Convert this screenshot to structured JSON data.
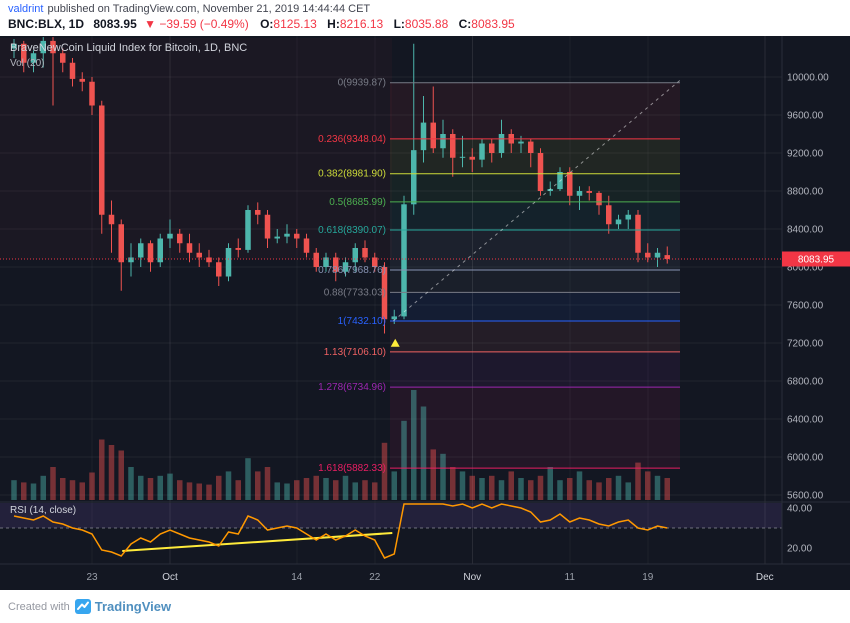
{
  "header": {
    "author": "valdrint",
    "published_text": "published on TradingView.com, November 21, 2019 14:44:44 CET",
    "symbol": "BNC:BLX, 1D",
    "last_price": "8083.95",
    "direction_icon": "▼",
    "change_text": "−39.59 (−0.49%)",
    "ohlc": [
      {
        "label": "O:",
        "value": "8125.13"
      },
      {
        "label": "H:",
        "value": "8216.13"
      },
      {
        "label": "L:",
        "value": "8035.88"
      },
      {
        "label": "C:",
        "value": "8083.95"
      }
    ]
  },
  "chart": {
    "title": "BraveNewCoin Liquid Index for Bitcoin, 1D, BNC",
    "volume_label": "Vol (20)",
    "rsi_label": "RSI (14, close)"
  },
  "footer": {
    "created_with": "Created with",
    "brand": "TradingView"
  },
  "chart_data": {
    "type": "candlestick",
    "title": "BraveNewCoin Liquid Index for Bitcoin, 1D, BNC",
    "interval": "1D",
    "colors": {
      "up": "#4db6ac",
      "down": "#ef5350",
      "accent": "#f23645"
    },
    "last_price": 8083.95,
    "last_price_label": "8083.95",
    "price_axis": {
      "max": 10000,
      "min": 5600,
      "ticks": [
        10000,
        9600,
        9200,
        8800,
        8400,
        8000,
        7600,
        7200,
        6800,
        6400,
        6000,
        5600
      ]
    },
    "time_axis": {
      "ticks": [
        {
          "label": "23",
          "index": 8,
          "major": false
        },
        {
          "label": "Oct",
          "index": 16,
          "major": true
        },
        {
          "label": "14",
          "index": 29,
          "major": false
        },
        {
          "label": "22",
          "index": 37,
          "major": false
        },
        {
          "label": "Nov",
          "index": 47,
          "major": true
        },
        {
          "label": "11",
          "index": 57,
          "major": false
        },
        {
          "label": "19",
          "index": 65,
          "major": false
        },
        {
          "label": "Dec",
          "index": 77,
          "major": true
        }
      ]
    },
    "candles": [
      [
        "Sep 15",
        10300,
        10400,
        10200,
        10350,
        0.18,
        36
      ],
      [
        "Sep 16",
        10350,
        10380,
        10050,
        10150,
        0.16,
        35
      ],
      [
        "Sep 17",
        10150,
        10280,
        10050,
        10250,
        0.15,
        34
      ],
      [
        "Sep 18",
        10250,
        10420,
        10100,
        10380,
        0.22,
        36
      ],
      [
        "Sep 19",
        10380,
        10420,
        9700,
        10250,
        0.3,
        33
      ],
      [
        "Sep 20",
        10250,
        10300,
        10050,
        10150,
        0.2,
        32
      ],
      [
        "Sep 21",
        10150,
        10200,
        9900,
        9980,
        0.18,
        30
      ],
      [
        "Sep 22",
        9980,
        10050,
        9850,
        9950,
        0.16,
        29
      ],
      [
        "Sep 23",
        9950,
        10000,
        9600,
        9700,
        0.25,
        27
      ],
      [
        "Sep 24",
        9700,
        9750,
        8350,
        8550,
        0.55,
        19
      ],
      [
        "Sep 25",
        8550,
        8700,
        8150,
        8450,
        0.5,
        18
      ],
      [
        "Sep 26",
        8450,
        8500,
        7750,
        8050,
        0.45,
        16
      ],
      [
        "Sep 27",
        8050,
        8250,
        7900,
        8100,
        0.3,
        22
      ],
      [
        "Sep 28",
        8100,
        8300,
        8000,
        8250,
        0.22,
        25
      ],
      [
        "Sep 29",
        8250,
        8280,
        7950,
        8050,
        0.2,
        23
      ],
      [
        "Sep 30",
        8050,
        8350,
        8000,
        8300,
        0.22,
        27
      ],
      [
        "Oct 1",
        8300,
        8500,
        8200,
        8350,
        0.24,
        29
      ],
      [
        "Oct 2",
        8350,
        8400,
        8150,
        8250,
        0.18,
        27
      ],
      [
        "Oct 3",
        8250,
        8350,
        8050,
        8150,
        0.16,
        25
      ],
      [
        "Oct 4",
        8150,
        8250,
        8000,
        8100,
        0.15,
        24
      ],
      [
        "Oct 5",
        8100,
        8180,
        8000,
        8050,
        0.14,
        23
      ],
      [
        "Oct 6",
        8050,
        8100,
        7800,
        7900,
        0.22,
        21
      ],
      [
        "Oct 7",
        7900,
        8250,
        7850,
        8200,
        0.26,
        28
      ],
      [
        "Oct 8",
        8200,
        8300,
        8100,
        8180,
        0.18,
        27
      ],
      [
        "Oct 9",
        8180,
        8650,
        8150,
        8600,
        0.38,
        36
      ],
      [
        "Oct 10",
        8600,
        8680,
        8450,
        8550,
        0.26,
        34
      ],
      [
        "Oct 11",
        8550,
        8600,
        8200,
        8300,
        0.3,
        29
      ],
      [
        "Oct 12",
        8300,
        8400,
        8250,
        8320,
        0.16,
        30
      ],
      [
        "Oct 13",
        8320,
        8450,
        8250,
        8350,
        0.15,
        31
      ],
      [
        "Oct 14",
        8350,
        8400,
        8200,
        8300,
        0.18,
        30
      ],
      [
        "Oct 15",
        8300,
        8350,
        8100,
        8150,
        0.2,
        27
      ],
      [
        "Oct 16",
        8150,
        8200,
        7950,
        8000,
        0.22,
        24
      ],
      [
        "Oct 17",
        8000,
        8150,
        7950,
        8100,
        0.2,
        27
      ],
      [
        "Oct 18",
        8100,
        8150,
        7850,
        7950,
        0.18,
        24
      ],
      [
        "Oct 19",
        7950,
        8100,
        7900,
        8050,
        0.22,
        26
      ],
      [
        "Oct 20",
        8050,
        8250,
        7950,
        8200,
        0.16,
        29
      ],
      [
        "Oct 21",
        8200,
        8280,
        8050,
        8100,
        0.18,
        26
      ],
      [
        "Oct 22",
        8100,
        8150,
        7950,
        8000,
        0.16,
        24
      ],
      [
        "Oct 23",
        8000,
        8050,
        7300,
        7450,
        0.52,
        15
      ],
      [
        "Oct 24",
        7450,
        7550,
        7400,
        7480,
        0.26,
        17
      ],
      [
        "Oct 25",
        7480,
        8750,
        7450,
        8660,
        0.72,
        45
      ],
      [
        "Oct 26",
        8660,
        10350,
        8550,
        9230,
        1.0,
        55
      ],
      [
        "Oct 27",
        9230,
        9800,
        9100,
        9520,
        0.85,
        52
      ],
      [
        "Oct 28",
        9520,
        9900,
        9200,
        9250,
        0.46,
        44
      ],
      [
        "Oct 29",
        9250,
        9550,
        9150,
        9400,
        0.42,
        46
      ],
      [
        "Oct 30",
        9400,
        9450,
        8950,
        9150,
        0.3,
        41
      ],
      [
        "Oct 31",
        9150,
        9380,
        9050,
        9160,
        0.26,
        42
      ],
      [
        "Nov 1",
        9160,
        9250,
        9000,
        9130,
        0.22,
        40
      ],
      [
        "Nov 2",
        9130,
        9350,
        9050,
        9300,
        0.2,
        42
      ],
      [
        "Nov 3",
        9300,
        9350,
        9100,
        9200,
        0.22,
        40
      ],
      [
        "Nov 4",
        9200,
        9550,
        9150,
        9400,
        0.18,
        43
      ],
      [
        "Nov 5",
        9400,
        9450,
        9200,
        9300,
        0.26,
        41
      ],
      [
        "Nov 6",
        9300,
        9380,
        9200,
        9320,
        0.2,
        40
      ],
      [
        "Nov 7",
        9320,
        9350,
        9050,
        9200,
        0.18,
        38
      ],
      [
        "Nov 8",
        9200,
        9250,
        8750,
        8800,
        0.22,
        33
      ],
      [
        "Nov 9",
        8800,
        8900,
        8750,
        8820,
        0.3,
        34
      ],
      [
        "Nov 10",
        8820,
        9050,
        8800,
        9000,
        0.18,
        37
      ],
      [
        "Nov 11",
        9000,
        9050,
        8650,
        8750,
        0.2,
        33
      ],
      [
        "Nov 12",
        8750,
        8850,
        8600,
        8800,
        0.26,
        35
      ],
      [
        "Nov 13",
        8800,
        8850,
        8700,
        8780,
        0.18,
        34
      ],
      [
        "Nov 14",
        8780,
        8800,
        8550,
        8650,
        0.16,
        32
      ],
      [
        "Nov 15",
        8650,
        8750,
        8350,
        8450,
        0.2,
        31
      ],
      [
        "Nov 16",
        8450,
        8550,
        8400,
        8500,
        0.22,
        33
      ],
      [
        "Nov 17",
        8500,
        8600,
        8400,
        8550,
        0.16,
        34
      ],
      [
        "Nov 18",
        8550,
        8600,
        8050,
        8150,
        0.34,
        30
      ],
      [
        "Nov 19",
        8150,
        8250,
        8050,
        8100,
        0.26,
        29
      ],
      [
        "Nov 20",
        8100,
        8200,
        8000,
        8150,
        0.22,
        31
      ],
      [
        "Nov 21",
        8125.13,
        8216.13,
        8035.88,
        8083.95,
        0.2,
        30
      ]
    ],
    "fib": {
      "levels": [
        {
          "ratio": "0",
          "price": 9939.87,
          "label": "0(9939.87)",
          "color": "#787b86"
        },
        {
          "ratio": "0.236",
          "price": 9348.04,
          "label": "0.236(9348.04)",
          "color": "#f23645"
        },
        {
          "ratio": "0.382",
          "price": 8981.9,
          "label": "0.382(8981.90)",
          "color": "#cddc39"
        },
        {
          "ratio": "0.5",
          "price": 8685.99,
          "label": "0.5(8685.99)",
          "color": "#4caf50"
        },
        {
          "ratio": "0.618",
          "price": 8390.07,
          "label": "0.618(8390.07)",
          "color": "#26a69a"
        },
        {
          "ratio": "0.786",
          "price": 7968.76,
          "label": "0.786(7968.76)",
          "color": "#8793b3"
        },
        {
          "ratio": "0.88",
          "price": 7733.03,
          "label": "0.88(7733.03)",
          "color": "#787b86"
        },
        {
          "ratio": "1",
          "price": 7432.1,
          "label": "1(7432.10)",
          "color": "#2962ff"
        },
        {
          "ratio": "1.13",
          "price": 7106.1,
          "label": "1.13(7106.10)",
          "color": "#f06263"
        },
        {
          "ratio": "1.278",
          "price": 6734.96,
          "label": "1.278(6734.96)",
          "color": "#9c27b0"
        },
        {
          "ratio": "1.618",
          "price": 5882.33,
          "label": "1.618(5882.33)",
          "color": "#e91e63"
        }
      ]
    },
    "trend_line": {
      "style": "dashed",
      "from": {
        "index": 38.9,
        "price": 7432.1
      },
      "to": {
        "index": 68.6,
        "price": 9990
      }
    },
    "marker": {
      "type": "triangle-up",
      "candle_index": 39.1,
      "price": 7245,
      "color": "#ffeb3b"
    },
    "rsi": {
      "ticks": [
        40,
        20
      ],
      "threshold": 30,
      "line_color": "#ff9800",
      "trend_color": "#ffeb3b",
      "trend_line": {
        "from": {
          "index": 11.1,
          "rsi": 18.5
        },
        "to": {
          "index": 38.8,
          "rsi": 27.5
        }
      }
    }
  }
}
